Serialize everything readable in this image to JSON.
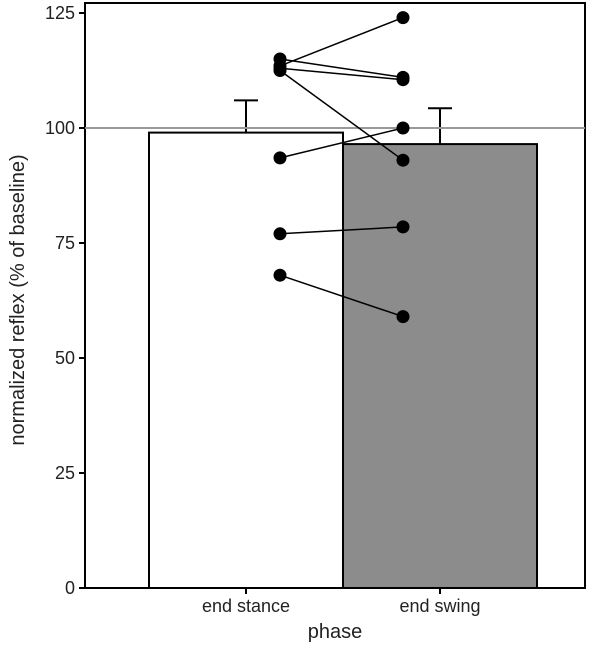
{
  "chart_data": {
    "type": "bar",
    "xlabel": "phase",
    "ylabel": "normalized reflex (% of baseline)",
    "ylim": [
      0,
      128
    ],
    "yticks": [
      0,
      25,
      50,
      75,
      100,
      125
    ],
    "categories": [
      "end stance",
      "end swing"
    ],
    "values": [
      99,
      96.5
    ],
    "errors": [
      7,
      7.8
    ],
    "bar_colors": [
      "#ffffff",
      "#8c8c8c"
    ],
    "reference_line": 100,
    "subjects": [
      {
        "stance": 115,
        "swing": 111
      },
      {
        "stance": 113.5,
        "swing": 124
      },
      {
        "stance": 113,
        "swing": 110.5
      },
      {
        "stance": 112.5,
        "swing": 93
      },
      {
        "stance": 93.5,
        "swing": 100
      },
      {
        "stance": 77,
        "swing": 78.5
      },
      {
        "stance": 68,
        "swing": 59
      }
    ],
    "grid": false
  }
}
